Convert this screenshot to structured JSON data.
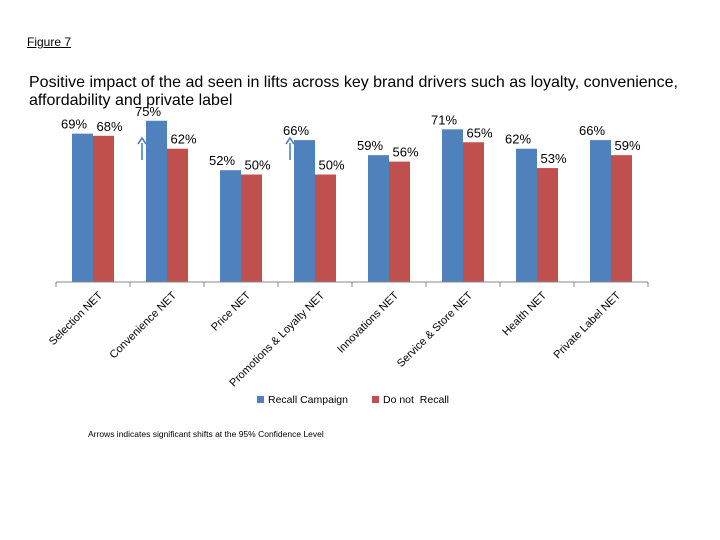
{
  "figure_label": "Figure 7",
  "footnote": "Arrows indicates significant shifts at the 95% Confidence Level",
  "colors": {
    "recall": "#4F81BD",
    "not_recall": "#C0504D",
    "arrow": "#4F81BD",
    "axis": "#888888"
  },
  "chart_data": {
    "type": "bar",
    "title": "Positive impact of the ad seen in lifts across key brand drivers such as loyalty, convenience, affordability and private label",
    "categories": [
      "Selection NET",
      "Convenience NET",
      "Price NET",
      "Promotions & Loyalty NET",
      "Innovations NET",
      "Service & Store NET",
      "Health NET",
      "Private Label NET"
    ],
    "series": [
      {
        "name": "Recall Campaign",
        "values": [
          69,
          75,
          52,
          66,
          59,
          71,
          62,
          66
        ]
      },
      {
        "name": "Do not  Recall",
        "values": [
          68,
          62,
          50,
          50,
          56,
          65,
          53,
          59
        ]
      }
    ],
    "data_labels": [
      [
        "69%",
        "75%",
        "52%",
        "66%",
        "59%",
        "71%",
        "62%",
        "66%"
      ],
      [
        "68%",
        "62%",
        "50%",
        "50%",
        "56%",
        "65%",
        "53%",
        "59%"
      ]
    ],
    "significant_categories": [
      "Convenience NET",
      "Promotions & Loyalty NET"
    ],
    "ylim": [
      0,
      100
    ],
    "xlabel": "",
    "ylabel": "",
    "legend": "bottom-center",
    "grid": false
  }
}
